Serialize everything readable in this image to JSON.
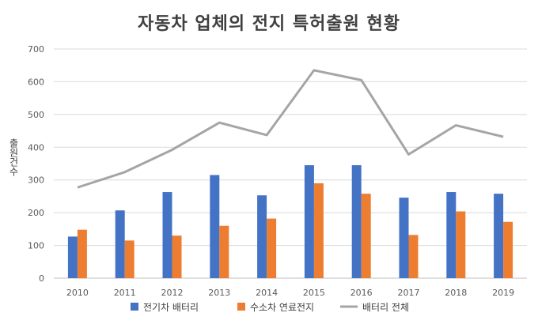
{
  "chart_data": {
    "type": "bar",
    "title": "자동차 업체의 전지 특허출원 현황",
    "xlabel": "",
    "ylabel": "출원건수",
    "categories": [
      "2010",
      "2011",
      "2012",
      "2013",
      "2014",
      "2015",
      "2016",
      "2017",
      "2018",
      "2019"
    ],
    "ylim": [
      0,
      700
    ],
    "yticks": [
      0,
      100,
      200,
      300,
      400,
      500,
      600,
      700
    ],
    "grid": true,
    "legend_position": "bottom",
    "series": [
      {
        "name": "전기차 배터리",
        "kind": "bar",
        "color": "#4472C4",
        "values": [
          127,
          207,
          263,
          315,
          253,
          345,
          345,
          246,
          263,
          258
        ]
      },
      {
        "name": "수소차 연료전지",
        "kind": "bar",
        "color": "#ED7D31",
        "values": [
          148,
          115,
          130,
          160,
          182,
          290,
          258,
          132,
          204,
          172
        ]
      },
      {
        "name": "배터리 전체",
        "kind": "line",
        "color": "#A5A5A5",
        "values": [
          277,
          324,
          392,
          475,
          437,
          635,
          605,
          378,
          467,
          432
        ]
      }
    ]
  }
}
